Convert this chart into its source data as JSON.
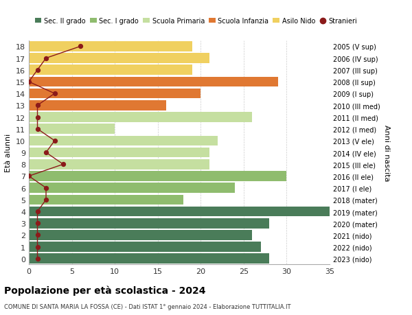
{
  "ages": [
    18,
    17,
    16,
    15,
    14,
    13,
    12,
    11,
    10,
    9,
    8,
    7,
    6,
    5,
    4,
    3,
    2,
    1,
    0
  ],
  "right_labels": [
    "2005 (V sup)",
    "2006 (IV sup)",
    "2007 (III sup)",
    "2008 (II sup)",
    "2009 (I sup)",
    "2010 (III med)",
    "2011 (II med)",
    "2012 (I med)",
    "2013 (V ele)",
    "2014 (IV ele)",
    "2015 (III ele)",
    "2016 (II ele)",
    "2017 (I ele)",
    "2018 (mater)",
    "2019 (mater)",
    "2020 (mater)",
    "2021 (nido)",
    "2022 (nido)",
    "2023 (nido)"
  ],
  "bar_values": [
    28,
    27,
    26,
    28,
    35,
    18,
    24,
    30,
    21,
    21,
    22,
    10,
    26,
    16,
    20,
    29,
    19,
    21,
    19
  ],
  "bar_colors": [
    "#4a7c59",
    "#4a7c59",
    "#4a7c59",
    "#4a7c59",
    "#4a7c59",
    "#8fbc6e",
    "#8fbc6e",
    "#8fbc6e",
    "#c5dfa0",
    "#c5dfa0",
    "#c5dfa0",
    "#c5dfa0",
    "#c5dfa0",
    "#e07832",
    "#e07832",
    "#e07832",
    "#f0d060",
    "#f0d060",
    "#f0d060"
  ],
  "stranieri_values": [
    1,
    1,
    1,
    1,
    1,
    2,
    2,
    0,
    4,
    2,
    3,
    1,
    1,
    1,
    3,
    0,
    1,
    2,
    6
  ],
  "stranieri_color": "#8b1a1a",
  "title": "Popolazione per età scolastica - 2024",
  "subtitle": "COMUNE DI SANTA MARIA LA FOSSA (CE) - Dati ISTAT 1° gennaio 2024 - Elaborazione TUTTITALIA.IT",
  "ylabel_left": "Età alunni",
  "ylabel_right": "Anni di nascita",
  "xlim": [
    0,
    35
  ],
  "xticks": [
    0,
    5,
    10,
    15,
    20,
    25,
    30,
    35
  ],
  "legend_labels": [
    "Sec. II grado",
    "Sec. I grado",
    "Scuola Primaria",
    "Scuola Infanzia",
    "Asilo Nido",
    "Stranieri"
  ],
  "legend_colors": [
    "#4a7c59",
    "#8fbc6e",
    "#c5dfa0",
    "#e07832",
    "#f0d060",
    "#8b1a1a"
  ],
  "bg_color": "#ffffff",
  "grid_color": "#cccccc",
  "bar_height": 0.85
}
